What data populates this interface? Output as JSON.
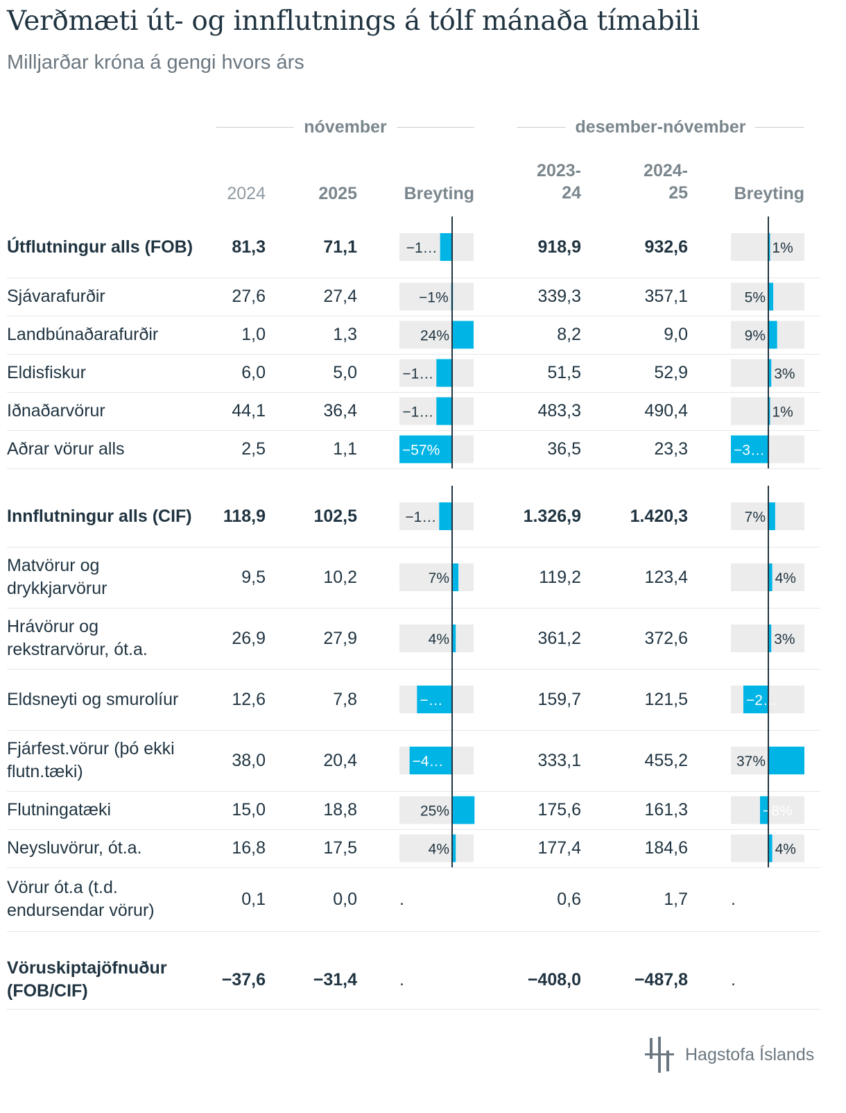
{
  "header": {
    "title": "Verðmæti út- og innflutnings á tólf mánaða tímabili",
    "subtitle": "Milljarðar króna á gengi hvors árs"
  },
  "groups": {
    "november": "nóvember",
    "twelve_month": "desember-nóvember"
  },
  "columns": {
    "y2024": "2024",
    "y2025": "2025",
    "change_a": "Breyting",
    "p1_line1": "2023-",
    "p1_line2": "24",
    "p2_line1": "2024-",
    "p2_line2": "25",
    "change_b": "Breyting"
  },
  "rows": {
    "export_total": {
      "label": "Útflutningur alls (FOB)",
      "v2024": "81,3",
      "v2025": "71,1",
      "p2324": "918,9",
      "p2425": "932,6"
    },
    "seafood": {
      "label": "Sjávarafurðir",
      "v2024": "27,6",
      "v2025": "27,4",
      "p2324": "339,3",
      "p2425": "357,1"
    },
    "agri": {
      "label": "Landbúnaðarafurðir",
      "v2024": "1,0",
      "v2025": "1,3",
      "p2324": "8,2",
      "p2425": "9,0"
    },
    "farmed_fish": {
      "label": "Eldisfiskur",
      "v2024": "6,0",
      "v2025": "5,0",
      "p2324": "51,5",
      "p2425": "52,9"
    },
    "industrial": {
      "label": "Iðnaðarvörur",
      "v2024": "44,1",
      "v2025": "36,4",
      "p2324": "483,3",
      "p2425": "490,4"
    },
    "other_exports": {
      "label": "Aðrar vörur alls",
      "v2024": "2,5",
      "v2025": "1,1",
      "p2324": "36,5",
      "p2425": "23,3"
    },
    "import_total": {
      "label": "Innflutningur alls (CIF)",
      "v2024": "118,9",
      "v2025": "102,5",
      "p2324": "1.326,9",
      "p2425": "1.420,3"
    },
    "food": {
      "label": "Matvörur og drykkjarvörur",
      "v2024": "9,5",
      "v2025": "10,2",
      "p2324": "119,2",
      "p2425": "123,4"
    },
    "raw": {
      "label": "Hrávörur og rekstrarvörur, ót.a.",
      "v2024": "26,9",
      "v2025": "27,9",
      "p2324": "361,2",
      "p2425": "372,6"
    },
    "fuel": {
      "label": "Eldsneyti og smurolíur",
      "v2024": "12,6",
      "v2025": "7,8",
      "p2324": "159,7",
      "p2425": "121,5"
    },
    "capital": {
      "label": "Fjárfest.vörur (þó ekki flutn.tæki)",
      "v2024": "38,0",
      "v2025": "20,4",
      "p2324": "333,1",
      "p2425": "455,2"
    },
    "transport": {
      "label": "Flutningatæki",
      "v2024": "15,0",
      "v2025": "18,8",
      "p2324": "175,6",
      "p2425": "161,3"
    },
    "consumer": {
      "label": "Neysluvörur, ót.a.",
      "v2024": "16,8",
      "v2025": "17,5",
      "p2324": "177,4",
      "p2425": "184,6"
    },
    "other_imports": {
      "label": "Vörur ót.a (t.d. endursendar vörur)",
      "v2024": "0,1",
      "v2025": "0,0",
      "p2324": "0,6",
      "p2425": "1,7",
      "change_nov": ".",
      "change_12m": "."
    },
    "balance": {
      "label": "Vöruskiptajöfnuður (FOB/CIF)",
      "v2024": "−37,6",
      "v2025": "−31,4",
      "p2324": "−408,0",
      "p2425": "−487,8",
      "change_nov": ".",
      "change_12m": "."
    }
  },
  "chart_data": {
    "type": "table",
    "title": "Verðmæti út- og innflutnings á tólf mánaða tímabili",
    "units": "Milljarðar króna á gengi hvors árs",
    "bar_colors": {
      "bar": "#00b4e6",
      "track": "#ececec",
      "axis": "#1f3340"
    },
    "november_change": [
      {
        "row": "export_total",
        "value": -13,
        "label": "−1…"
      },
      {
        "row": "seafood",
        "value": -1,
        "label": "−1%"
      },
      {
        "row": "agri",
        "value": 24,
        "label": "24%"
      },
      {
        "row": "farmed_fish",
        "value": -17,
        "label": "−1…"
      },
      {
        "row": "industrial",
        "value": -17,
        "label": "−1…"
      },
      {
        "row": "other_exports",
        "value": -57,
        "label": "−57%"
      },
      {
        "row": "import_total",
        "value": -14,
        "label": "−1…"
      },
      {
        "row": "food",
        "value": 7,
        "label": "7%"
      },
      {
        "row": "raw",
        "value": 4,
        "label": "4%"
      },
      {
        "row": "fuel",
        "value": -38,
        "label": "−…"
      },
      {
        "row": "capital",
        "value": -46,
        "label": "−4…"
      },
      {
        "row": "transport",
        "value": 25,
        "label": "25%"
      },
      {
        "row": "consumer",
        "value": 4,
        "label": "4%"
      }
    ],
    "twelve_month_change": [
      {
        "row": "export_total",
        "value": 1,
        "label": "1%"
      },
      {
        "row": "seafood",
        "value": 5,
        "label": "5%"
      },
      {
        "row": "agri",
        "value": 9,
        "label": "9%"
      },
      {
        "row": "farmed_fish",
        "value": 3,
        "label": "3%"
      },
      {
        "row": "industrial",
        "value": 1,
        "label": "1%"
      },
      {
        "row": "other_exports",
        "value": -36,
        "label": "−3…"
      },
      {
        "row": "import_total",
        "value": 7,
        "label": "7%"
      },
      {
        "row": "food",
        "value": 4,
        "label": "4%"
      },
      {
        "row": "raw",
        "value": 3,
        "label": "3%"
      },
      {
        "row": "fuel",
        "value": -24,
        "label": "−2…"
      },
      {
        "row": "capital",
        "value": 37,
        "label": "37%"
      },
      {
        "row": "transport",
        "value": -8,
        "label": "−8%"
      },
      {
        "row": "consumer",
        "value": 4,
        "label": "4%"
      }
    ]
  },
  "footer": {
    "logo_text": "Hagstofa Íslands"
  }
}
